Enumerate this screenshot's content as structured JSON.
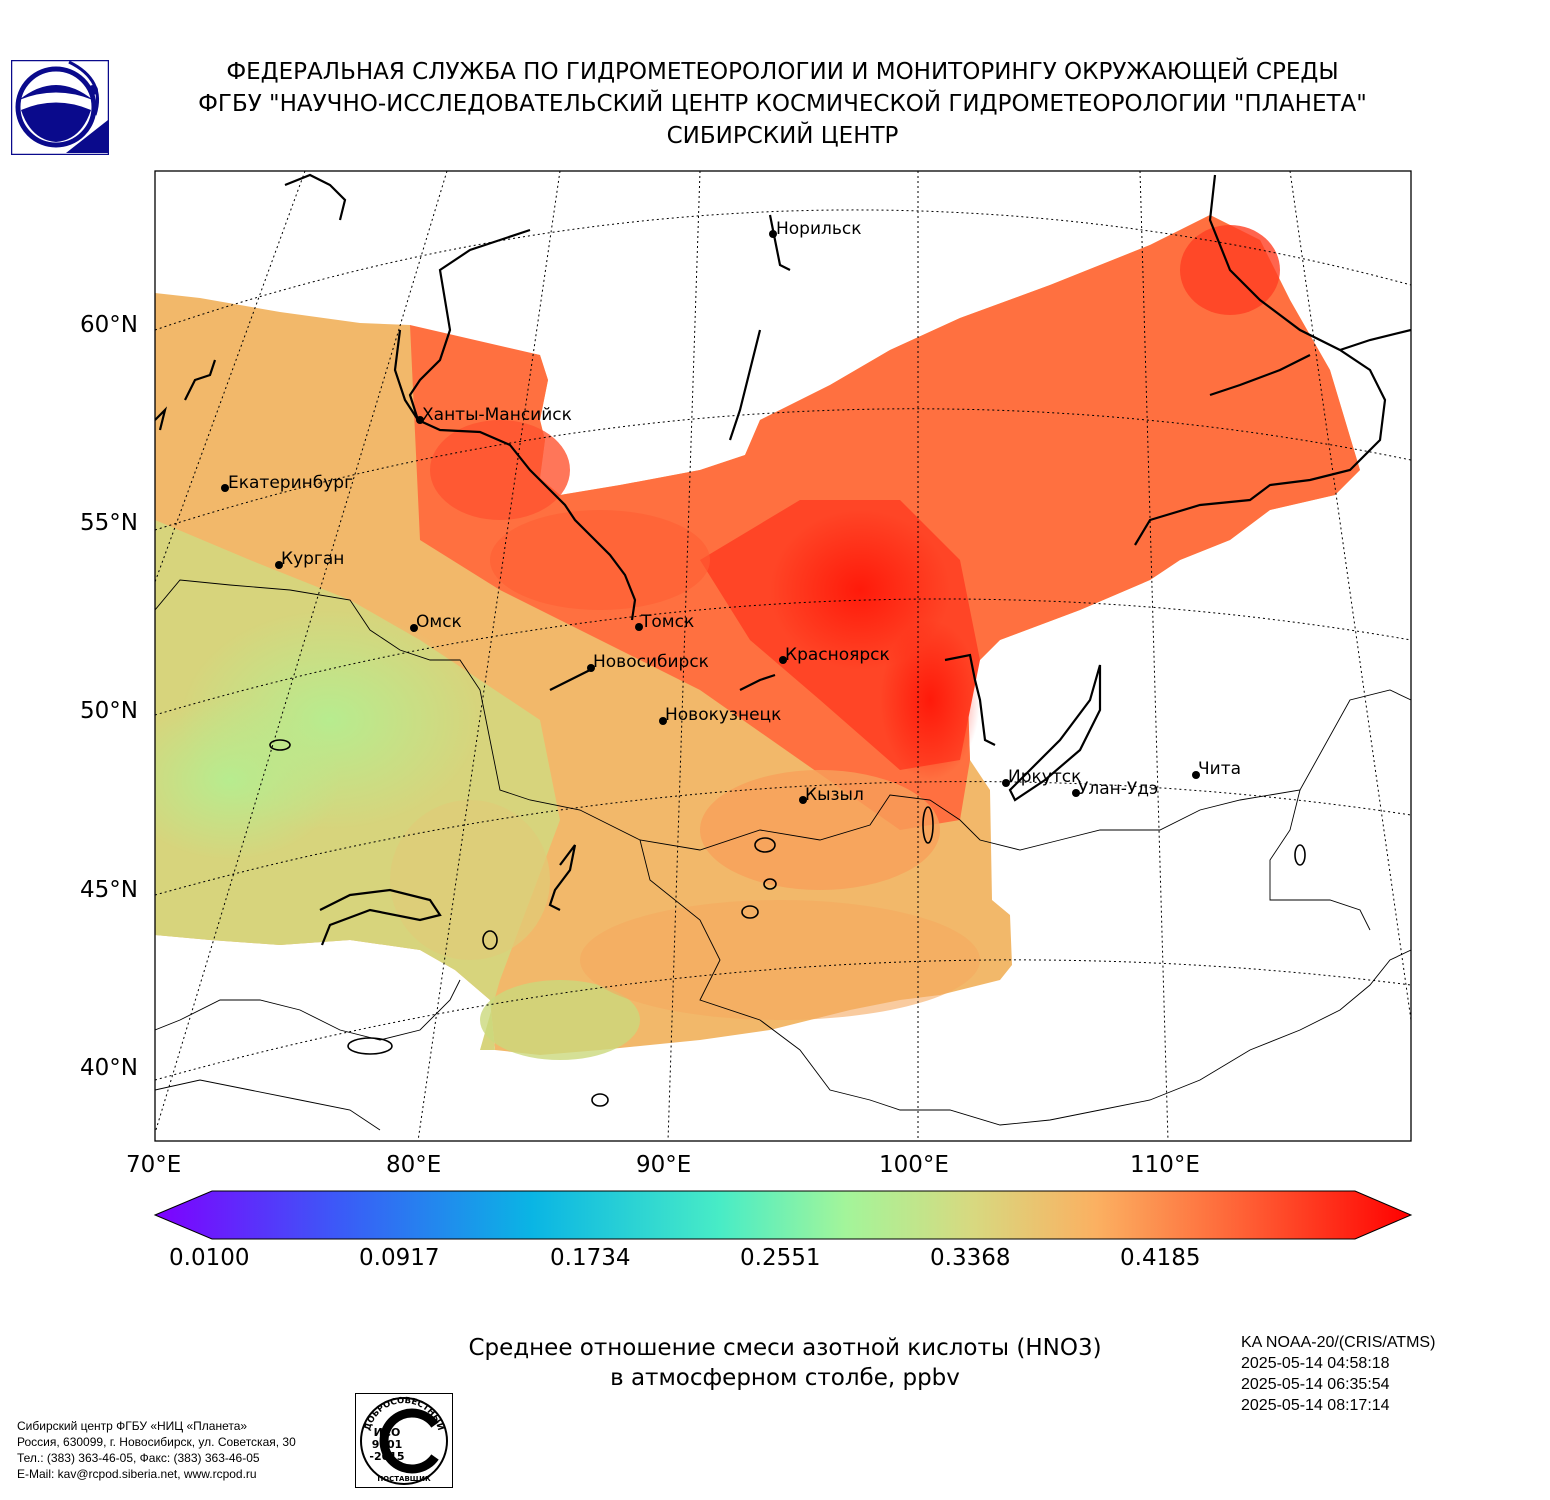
{
  "header": {
    "line1": "ФЕДЕРАЛЬНАЯ СЛУЖБА ПО ГИДРОМЕТЕОРОЛОГИИ И МОНИТОРИНГУ ОКРУЖАЮЩЕЙ СРЕДЫ",
    "line2": "ФГБУ \"НАУЧНО-ИССЛЕДОВАТЕЛЬСКИЙ ЦЕНТР КОСМИЧЕСКОЙ ГИДРОМЕТЕОРОЛОГИИ \"ПЛАНЕТА\"",
    "line3": "СИБИРСКИЙ ЦЕНТР"
  },
  "map": {
    "lat_labels": [
      "60°N",
      "55°N",
      "50°N",
      "45°N",
      "40°N"
    ],
    "lon_labels": [
      "70°E",
      "80°E",
      "90°E",
      "100°E",
      "110°E"
    ],
    "cities": [
      {
        "name": "Норильск"
      },
      {
        "name": "Ханты-Мансийск"
      },
      {
        "name": "Екатеринбург"
      },
      {
        "name": "Курган"
      },
      {
        "name": "Омск"
      },
      {
        "name": "Томск"
      },
      {
        "name": "Новосибирск"
      },
      {
        "name": "Красноярск"
      },
      {
        "name": "Новокузнецк"
      },
      {
        "name": "Кызыл"
      },
      {
        "name": "Иркутск"
      },
      {
        "name": "Улан-Удэ"
      },
      {
        "name": "Чита"
      }
    ],
    "colors": {
      "low": "#7f00ff",
      "mid": "#a3f59a",
      "high": "#ff0000",
      "land_line": "#000000"
    }
  },
  "colorbar": {
    "labels": [
      "0.0100",
      "0.0917",
      "0.1734",
      "0.2551",
      "0.3368",
      "0.4185"
    ]
  },
  "caption": {
    "line1": "Среднее отношение смеси азотной кислоты (HNO3)",
    "line2": "в атмосферном столбе, ppbv"
  },
  "satellite": {
    "name": "KA NOAA-20/(CRIS/ATMS)",
    "times": [
      "2025-05-14 04:58:18",
      "2025-05-14 06:35:54",
      "2025-05-14 08:17:14"
    ]
  },
  "footer": {
    "lines": [
      "Сибирский центр ФГБУ «НИЦ «Планета»",
      "Россия, 630099, г. Новосибирск, ул. Советская, 30",
      "Тел.: (383) 363-46-05, Факс: (383) 363-46-05",
      "E-Mail: kav@rcpod.siberia.net, www.rcpod.ru"
    ],
    "iso_top": "ДОБРОСОВЕСТНЫЙ",
    "iso_mid": [
      "ИСО",
      "9001",
      "-2015"
    ],
    "iso_bottom": "ПОСТАВЩИК"
  }
}
